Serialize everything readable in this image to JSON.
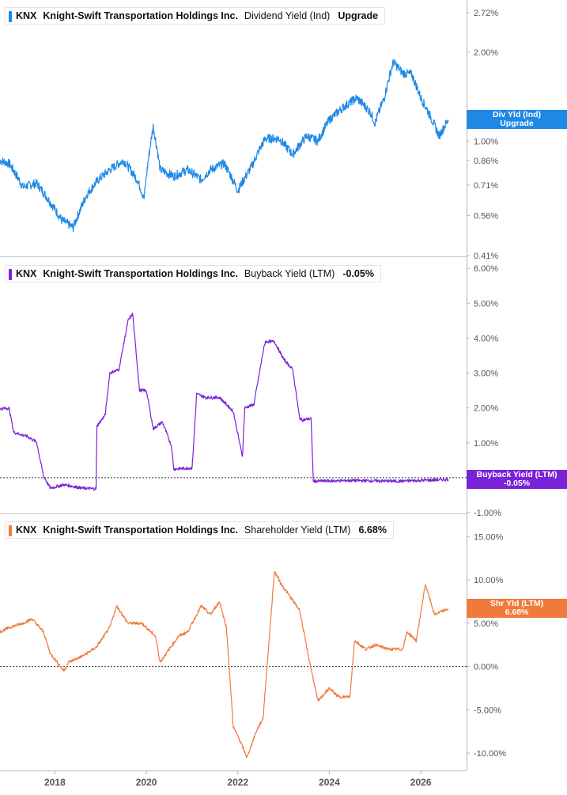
{
  "chart_data": [
    {
      "type": "line",
      "ticker": "KNX",
      "company": "Knight-Swift Transportation Holdings Inc.",
      "metric": "Dividend Yield (Ind)",
      "legend_value": "Upgrade",
      "tag_lines": [
        "Div Yld (Ind)",
        "Upgrade"
      ],
      "tag_value": 1.18,
      "color": "#1e88e5",
      "y_scale": "log",
      "ylim": [
        0.41,
        3.0
      ],
      "y_ticks": [
        {
          "v": 2.72,
          "label": "2.72%"
        },
        {
          "v": 2.0,
          "label": "2.00%"
        },
        {
          "v": 1.0,
          "label": "1.00%"
        },
        {
          "v": 0.86,
          "label": "0.86%"
        },
        {
          "v": 0.71,
          "label": "0.71%"
        },
        {
          "v": 0.56,
          "label": "0.56%"
        },
        {
          "v": 0.41,
          "label": "0.41%"
        }
      ],
      "series": [
        {
          "x": [
            2016.8,
            2017.0,
            2017.3,
            2017.6,
            2017.9,
            2018.15,
            2018.4,
            2018.7,
            2018.95,
            2019.2,
            2019.5,
            2019.8,
            2019.95,
            2020.15,
            2020.3,
            2020.6,
            2020.9,
            2021.2,
            2021.4,
            2021.7,
            2022.0,
            2022.3,
            2022.6,
            2022.9,
            2023.2,
            2023.5,
            2023.75,
            2024.0,
            2024.3,
            2024.6,
            2024.9,
            2025.0,
            2025.2,
            2025.4,
            2025.6,
            2025.8,
            2026.0,
            2026.2,
            2026.4,
            2026.6
          ],
          "values": [
            0.86,
            0.84,
            0.7,
            0.72,
            0.62,
            0.54,
            0.51,
            0.66,
            0.74,
            0.8,
            0.86,
            0.74,
            0.64,
            1.12,
            0.8,
            0.76,
            0.8,
            0.74,
            0.8,
            0.84,
            0.68,
            0.82,
            1.02,
            1.02,
            0.9,
            1.04,
            1.0,
            1.18,
            1.3,
            1.4,
            1.25,
            1.15,
            1.4,
            1.85,
            1.7,
            1.68,
            1.4,
            1.22,
            1.04,
            1.18
          ]
        }
      ]
    },
    {
      "type": "line",
      "ticker": "KNX",
      "company": "Knight-Swift Transportation Holdings Inc.",
      "metric": "Buyback Yield (LTM)",
      "legend_value": "-0.05%",
      "tag_lines": [
        "Buyback Yield (LTM)",
        "-0.05%"
      ],
      "tag_value": -0.05,
      "color": "#7a22d8",
      "ylim": [
        -1.0,
        6.3
      ],
      "zero_line": true,
      "y_ticks": [
        {
          "v": 6,
          "label": "6.00%"
        },
        {
          "v": 5,
          "label": "5.00%"
        },
        {
          "v": 4,
          "label": "4.00%"
        },
        {
          "v": 3,
          "label": "3.00%"
        },
        {
          "v": 2,
          "label": "2.00%"
        },
        {
          "v": 1,
          "label": "1.00%"
        },
        {
          "v": -1,
          "label": "-1.00%"
        }
      ],
      "series": [
        {
          "x": [
            2016.8,
            2017.0,
            2017.1,
            2017.4,
            2017.6,
            2017.75,
            2017.9,
            2018.2,
            2018.6,
            2018.9,
            2018.92,
            2019.1,
            2019.2,
            2019.4,
            2019.6,
            2019.7,
            2019.85,
            2020.0,
            2020.15,
            2020.35,
            2020.55,
            2020.6,
            2021.0,
            2021.1,
            2021.3,
            2021.6,
            2021.9,
            2022.1,
            2022.15,
            2022.35,
            2022.55,
            2022.6,
            2022.8,
            2023.0,
            2023.2,
            2023.35,
            2023.42,
            2023.6,
            2023.65,
            2024.5,
            2025.5,
            2026.6
          ],
          "values": [
            1.98,
            1.99,
            1.3,
            1.18,
            1.02,
            0.05,
            -0.3,
            -0.2,
            -0.3,
            -0.32,
            1.48,
            1.8,
            3.0,
            3.1,
            4.5,
            4.7,
            2.5,
            2.5,
            1.4,
            1.6,
            0.9,
            0.25,
            0.28,
            2.4,
            2.3,
            2.3,
            1.9,
            0.6,
            2.0,
            2.1,
            3.6,
            3.9,
            3.9,
            3.4,
            3.1,
            1.7,
            1.65,
            1.7,
            -0.1,
            -0.08,
            -0.1,
            -0.05
          ]
        }
      ]
    },
    {
      "type": "line",
      "ticker": "KNX",
      "company": "Knight-Swift Transportation Holdings Inc.",
      "metric": "Shareholder Yield (LTM)",
      "legend_value": "6.68%",
      "tag_lines": [
        "Shr Yld (LTM)",
        "6.68%"
      ],
      "tag_value": 6.68,
      "color": "#f07a3c",
      "ylim": [
        -12.0,
        17.5
      ],
      "zero_line": true,
      "y_ticks": [
        {
          "v": 15,
          "label": "15.00%"
        },
        {
          "v": 10,
          "label": "10.00%"
        },
        {
          "v": 5,
          "label": "5.00%"
        },
        {
          "v": 0,
          "label": "0.00%"
        },
        {
          "v": -5,
          "label": "-5.00%"
        },
        {
          "v": -10,
          "label": "-10.00%"
        }
      ],
      "series": [
        {
          "x": [
            2016.8,
            2017.0,
            2017.3,
            2017.5,
            2017.75,
            2017.9,
            2018.2,
            2018.3,
            2018.6,
            2018.9,
            2019.2,
            2019.35,
            2019.6,
            2019.9,
            2020.2,
            2020.3,
            2020.5,
            2020.7,
            2020.9,
            2021.2,
            2021.4,
            2021.6,
            2021.75,
            2021.9,
            2022.0,
            2022.2,
            2022.4,
            2022.55,
            2022.8,
            2022.95,
            2023.15,
            2023.35,
            2023.55,
            2023.75,
            2024.0,
            2024.2,
            2024.45,
            2024.55,
            2024.8,
            2025.0,
            2025.3,
            2025.6,
            2025.7,
            2025.9,
            2026.1,
            2026.3,
            2026.6
          ],
          "values": [
            4.0,
            4.5,
            5.0,
            5.5,
            4.0,
            1.5,
            -0.5,
            0.5,
            1.2,
            2.2,
            4.5,
            7.0,
            5.0,
            5.0,
            3.5,
            0.5,
            2.0,
            3.5,
            4.0,
            7.0,
            6.0,
            7.5,
            4.5,
            -7.0,
            -8.0,
            -10.5,
            -7.5,
            -6.0,
            11.0,
            9.5,
            8.0,
            6.5,
            1.0,
            -4.0,
            -2.5,
            -3.5,
            -3.5,
            3.0,
            2.0,
            2.5,
            2.0,
            2.0,
            4.0,
            3.0,
            9.5,
            6.0,
            6.68
          ]
        }
      ]
    }
  ],
  "x_axis": {
    "ticks": [
      {
        "v": 2018,
        "label": "2018"
      },
      {
        "v": 2020,
        "label": "2020"
      },
      {
        "v": 2022,
        "label": "2022"
      },
      {
        "v": 2024,
        "label": "2024"
      },
      {
        "v": 2026,
        "label": "2026"
      }
    ],
    "range": [
      2016.8,
      2027.0
    ]
  }
}
